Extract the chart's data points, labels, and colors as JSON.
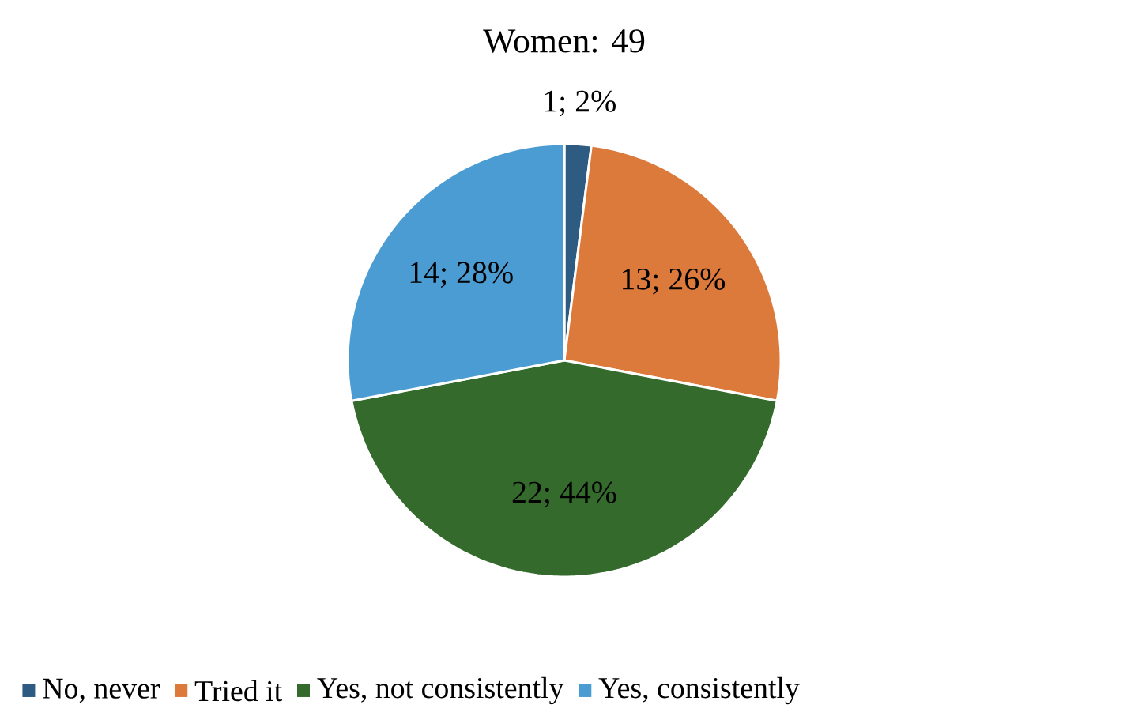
{
  "chart_data": {
    "type": "pie",
    "title": "Women: 49",
    "categories": [
      "No, never",
      "Tried it",
      "Yes, not consistently",
      "Yes, consistently"
    ],
    "values": [
      1,
      13,
      22,
      14
    ],
    "value_labels": [
      "1; 2%",
      "13; 26%",
      "22; 44%",
      "14; 28%"
    ],
    "colors": [
      "#2e5b82",
      "#dc7a3c",
      "#346b2c",
      "#4b9cd3"
    ],
    "legend": "bottom"
  }
}
